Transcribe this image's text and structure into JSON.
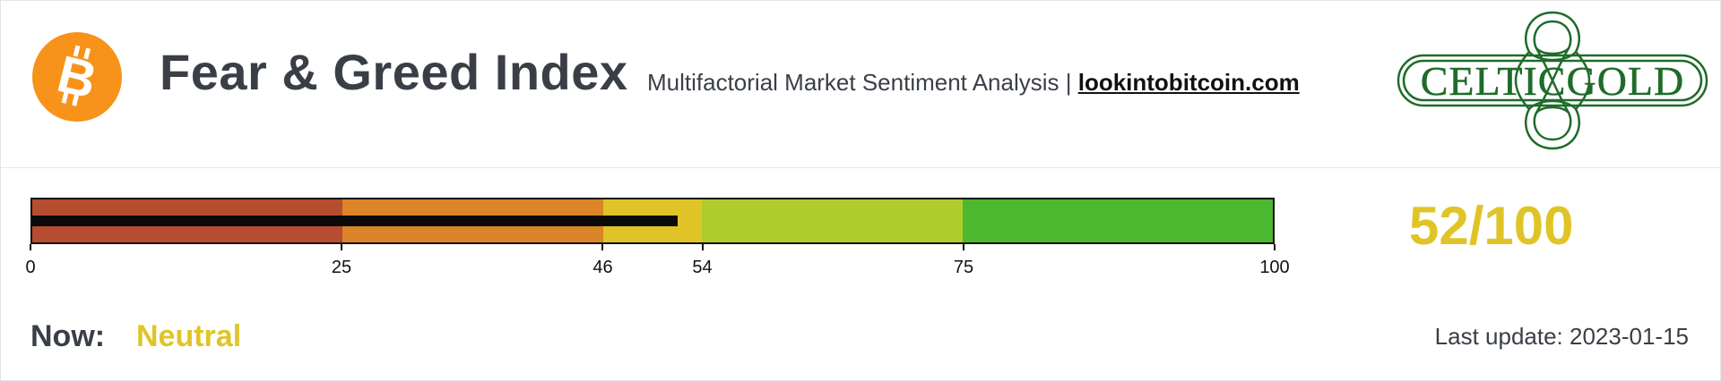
{
  "header": {
    "title": "Fear & Greed Index",
    "subtitle": "Multifactorial Market Sentiment Analysis |",
    "link": "lookintobitcoin.com",
    "left_logo_icon": "bitcoin-icon",
    "right_logo_text": "CELTICGOLD"
  },
  "colors": {
    "bitcoin_orange": "#f7931a",
    "celtic_green": "#1f6b2a",
    "score_yellow": "#e0c427",
    "zones": [
      "#b64c30",
      "#dc8428",
      "#e0c427",
      "#b0cc2c",
      "#4cb82f"
    ],
    "needle": "#0a0a0a"
  },
  "gauge": {
    "min": 0,
    "max": 100,
    "value": 52,
    "zone_bounds": [
      0,
      25,
      46,
      54,
      75,
      100
    ],
    "tick_labels": [
      "0",
      "25",
      "46",
      "54",
      "75",
      "100"
    ]
  },
  "score_text": "52/100",
  "status": {
    "label": "Now:",
    "value": "Neutral"
  },
  "last_update": "Last update: 2023-01-15"
}
